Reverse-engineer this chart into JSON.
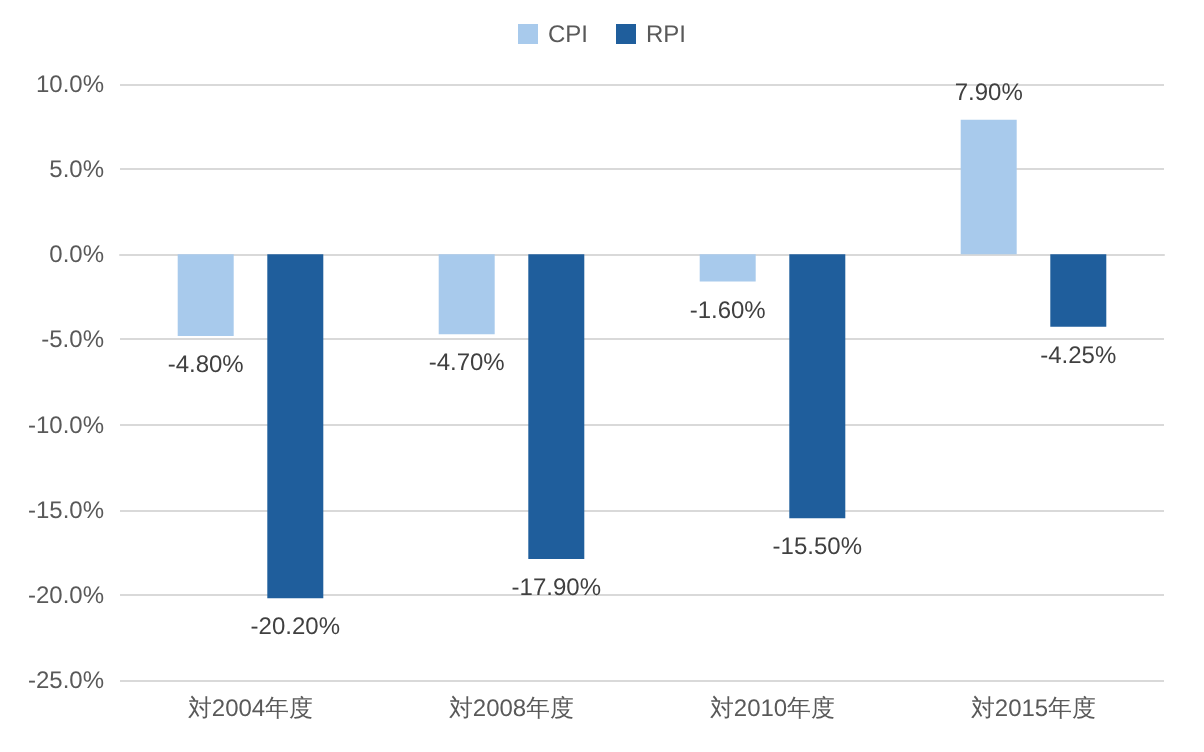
{
  "chart_data": {
    "type": "bar",
    "categories": [
      "対2004年度",
      "対2008年度",
      "対2010年度",
      "対2015年度"
    ],
    "series": [
      {
        "name": "CPI",
        "color": "#a8caec",
        "values": [
          -4.8,
          -4.7,
          -1.6,
          7.9
        ],
        "value_labels": [
          "-4.80%",
          "-4.70%",
          "-1.60%",
          "7.90%"
        ]
      },
      {
        "name": "RPI",
        "color": "#1f5e9c",
        "values": [
          -20.2,
          -17.9,
          -15.5,
          -4.25
        ],
        "value_labels": [
          "-20.20%",
          "-17.90%",
          "-15.50%",
          "-4.25%"
        ]
      }
    ],
    "ylim": [
      -25,
      10
    ],
    "yticks": [
      {
        "value": -25,
        "label": "-25.0%"
      },
      {
        "value": -20,
        "label": "-20.0%"
      },
      {
        "value": -15,
        "label": "-15.0%"
      },
      {
        "value": -10,
        "label": "-10.0%"
      },
      {
        "value": -5,
        "label": "-5.0%"
      },
      {
        "value": 0,
        "label": "0.0%"
      },
      {
        "value": 5,
        "label": "5.0%"
      },
      {
        "value": 10,
        "label": "10.0%"
      }
    ],
    "grid": "y",
    "legend": "top"
  }
}
